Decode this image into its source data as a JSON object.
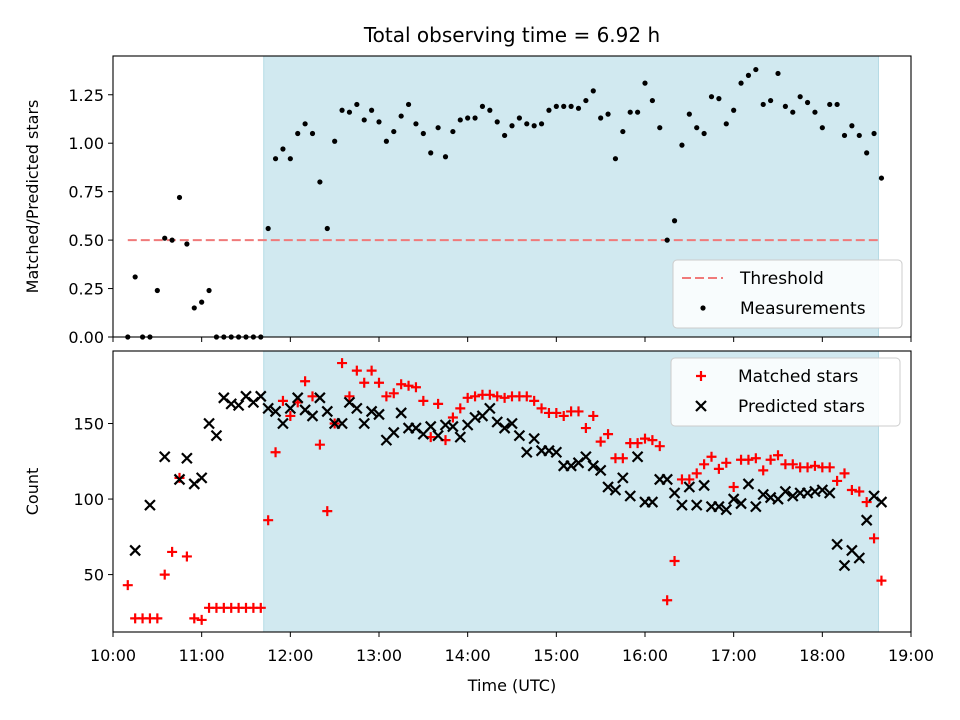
{
  "chart_data": [
    {
      "type": "scatter",
      "title": "Total observing time = 6.92 h",
      "ylabel": "Matched/Predicted stars",
      "xlim": [
        "10:00",
        "19:00"
      ],
      "ylim": [
        0,
        1.45
      ],
      "yticks": [
        "0.00",
        "0.25",
        "0.50",
        "0.75",
        "1.00",
        "1.25"
      ],
      "shaded_region": {
        "from": "11:42",
        "to": "18:38",
        "color": "#d1e9f0"
      },
      "threshold": {
        "name": "Threshold",
        "value": 0.5,
        "from": "10:10",
        "to": "18:38",
        "color": "#f07a7a"
      },
      "series": [
        {
          "name": "Measurements",
          "color": "#000000",
          "x": [
            "10:10",
            "10:15",
            "10:20",
            "10:25",
            "10:30",
            "10:35",
            "10:40",
            "10:45",
            "10:50",
            "10:55",
            "11:00",
            "11:05",
            "11:10",
            "11:15",
            "11:20",
            "11:25",
            "11:30",
            "11:35",
            "11:40",
            "11:45",
            "11:50",
            "11:55",
            "12:00",
            "12:05",
            "12:10",
            "12:15",
            "12:20",
            "12:25",
            "12:30",
            "12:35",
            "12:40",
            "12:45",
            "12:50",
            "12:55",
            "13:00",
            "13:05",
            "13:10",
            "13:15",
            "13:20",
            "13:25",
            "13:30",
            "13:35",
            "13:40",
            "13:45",
            "13:50",
            "13:55",
            "14:00",
            "14:05",
            "14:10",
            "14:15",
            "14:20",
            "14:25",
            "14:30",
            "14:35",
            "14:40",
            "14:45",
            "14:50",
            "14:55",
            "15:00",
            "15:05",
            "15:10",
            "15:15",
            "15:20",
            "15:25",
            "15:30",
            "15:35",
            "15:40",
            "15:45",
            "15:50",
            "15:55",
            "16:00",
            "16:05",
            "16:10",
            "16:15",
            "16:20",
            "16:25",
            "16:30",
            "16:35",
            "16:40",
            "16:45",
            "16:50",
            "16:55",
            "17:00",
            "17:05",
            "17:10",
            "17:15",
            "17:20",
            "17:25",
            "17:30",
            "17:35",
            "17:40",
            "17:45",
            "17:50",
            "17:55",
            "18:00",
            "18:05",
            "18:10",
            "18:15",
            "18:20",
            "18:25",
            "18:30",
            "18:35",
            "18:40"
          ],
          "y": [
            0,
            0.31,
            0,
            0,
            0.24,
            0.51,
            0.5,
            0.72,
            0.48,
            0.15,
            0.18,
            0.24,
            0,
            0,
            0,
            0,
            0,
            0,
            0,
            0.56,
            0.92,
            0.97,
            0.92,
            1.05,
            1.1,
            1.05,
            0.8,
            0.56,
            1.01,
            1.17,
            1.16,
            1.2,
            1.12,
            1.17,
            1.11,
            1.01,
            1.06,
            1.14,
            1.2,
            1.1,
            1.05,
            0.95,
            1.08,
            0.93,
            1.06,
            1.12,
            1.13,
            1.13,
            1.19,
            1.17,
            1.11,
            1.04,
            1.09,
            1.13,
            1.1,
            1.09,
            1.1,
            1.17,
            1.19,
            1.19,
            1.19,
            1.18,
            1.22,
            1.27,
            1.13,
            1.15,
            0.92,
            1.06,
            1.16,
            1.16,
            1.31,
            1.22,
            1.08,
            0.5,
            0.6,
            0.99,
            1.15,
            1.08,
            1.05,
            1.24,
            1.23,
            1.1,
            1.17,
            1.31,
            1.35,
            1.38,
            1.2,
            1.22,
            1.36,
            1.19,
            1.16,
            1.24,
            1.21,
            1.16,
            1.08,
            1.2,
            1.2,
            1.04,
            1.09,
            1.04,
            0.95,
            1.05,
            0.82
          ]
        }
      ],
      "legend": {
        "placement": "lower right",
        "entries": [
          "Threshold",
          "Measurements"
        ]
      }
    },
    {
      "type": "scatter",
      "ylabel": "Count",
      "xlabel": "Time (UTC)",
      "xlim": [
        "10:00",
        "19:00"
      ],
      "xticks": [
        "10:00",
        "11:00",
        "12:00",
        "13:00",
        "14:00",
        "15:00",
        "16:00",
        "17:00",
        "18:00",
        "19:00"
      ],
      "ylim": [
        12,
        198
      ],
      "yticks": [
        "50",
        "100",
        "150"
      ],
      "shaded_region": {
        "from": "11:42",
        "to": "18:38",
        "color": "#d1e9f0"
      },
      "series": [
        {
          "name": "Matched stars",
          "marker": "plus",
          "color": "#ff0000",
          "x": [
            "10:10",
            "10:15",
            "10:20",
            "10:25",
            "10:30",
            "10:35",
            "10:40",
            "10:45",
            "10:50",
            "10:55",
            "11:00",
            "11:05",
            "11:10",
            "11:15",
            "11:20",
            "11:25",
            "11:30",
            "11:35",
            "11:40",
            "11:45",
            "11:50",
            "11:55",
            "12:00",
            "12:05",
            "12:10",
            "12:15",
            "12:20",
            "12:25",
            "12:30",
            "12:35",
            "12:40",
            "12:45",
            "12:50",
            "12:55",
            "13:00",
            "13:05",
            "13:10",
            "13:15",
            "13:20",
            "13:25",
            "13:30",
            "13:35",
            "13:40",
            "13:45",
            "13:50",
            "13:55",
            "14:00",
            "14:05",
            "14:10",
            "14:15",
            "14:20",
            "14:25",
            "14:30",
            "14:35",
            "14:40",
            "14:45",
            "14:50",
            "14:55",
            "15:00",
            "15:05",
            "15:10",
            "15:15",
            "15:20",
            "15:25",
            "15:30",
            "15:35",
            "15:40",
            "15:45",
            "15:50",
            "15:55",
            "16:00",
            "16:05",
            "16:10",
            "16:15",
            "16:20",
            "16:25",
            "16:30",
            "16:35",
            "16:40",
            "16:45",
            "16:50",
            "16:55",
            "17:00",
            "17:05",
            "17:10",
            "17:15",
            "17:20",
            "17:25",
            "17:30",
            "17:35",
            "17:40",
            "17:45",
            "17:50",
            "17:55",
            "18:00",
            "18:05",
            "18:10",
            "18:15",
            "18:20",
            "18:25",
            "18:30",
            "18:35",
            "18:40"
          ],
          "y": [
            43,
            21,
            21,
            21,
            21,
            50,
            65,
            114,
            62,
            21,
            20,
            28,
            28,
            28,
            28,
            28,
            28,
            28,
            28,
            86,
            131,
            165,
            155,
            164,
            178,
            168,
            136,
            92,
            150,
            190,
            168,
            185,
            177,
            185,
            177,
            168,
            170,
            176,
            175,
            174,
            165,
            141,
            163,
            139,
            154,
            160,
            167,
            168,
            169,
            169,
            168,
            167,
            168,
            168,
            168,
            165,
            160,
            157,
            157,
            155,
            158,
            158,
            147,
            155,
            138,
            143,
            127,
            127,
            137,
            137,
            140,
            139,
            135,
            33,
            59,
            113,
            113,
            117,
            123,
            128,
            120,
            124,
            108,
            126,
            126,
            127,
            119,
            126,
            129,
            123,
            123,
            121,
            121,
            122,
            121,
            121,
            112,
            117,
            106,
            105,
            98,
            74,
            46
          ]
        },
        {
          "name": "Predicted stars",
          "marker": "x",
          "color": "#000000",
          "x": [
            "10:15",
            "10:25",
            "10:35",
            "10:45",
            "10:50",
            "10:55",
            "11:00",
            "11:05",
            "11:10",
            "11:15",
            "11:20",
            "11:25",
            "11:30",
            "11:35",
            "11:40",
            "11:45",
            "11:50",
            "11:55",
            "12:00",
            "12:05",
            "12:10",
            "12:15",
            "12:20",
            "12:25",
            "12:30",
            "12:35",
            "12:40",
            "12:45",
            "12:50",
            "12:55",
            "13:00",
            "13:05",
            "13:10",
            "13:15",
            "13:20",
            "13:25",
            "13:30",
            "13:35",
            "13:40",
            "13:45",
            "13:50",
            "13:55",
            "14:00",
            "14:05",
            "14:10",
            "14:15",
            "14:20",
            "14:25",
            "14:30",
            "14:35",
            "14:40",
            "14:45",
            "14:50",
            "14:55",
            "15:00",
            "15:05",
            "15:10",
            "15:15",
            "15:20",
            "15:25",
            "15:30",
            "15:35",
            "15:40",
            "15:45",
            "15:50",
            "15:55",
            "16:00",
            "16:05",
            "16:10",
            "16:15",
            "16:20",
            "16:25",
            "16:30",
            "16:35",
            "16:40",
            "16:45",
            "16:50",
            "16:55",
            "17:00",
            "17:05",
            "17:10",
            "17:15",
            "17:20",
            "17:25",
            "17:30",
            "17:35",
            "17:40",
            "17:45",
            "17:50",
            "17:55",
            "18:00",
            "18:05",
            "18:10",
            "18:15",
            "18:20",
            "18:25",
            "18:30",
            "18:35",
            "18:40"
          ],
          "y": [
            66,
            96,
            128,
            113,
            127,
            110,
            114,
            150,
            142,
            167,
            163,
            162,
            168,
            164,
            168,
            160,
            158,
            150,
            160,
            167,
            159,
            155,
            167,
            158,
            150,
            150,
            164,
            160,
            150,
            158,
            156,
            139,
            144,
            157,
            147,
            147,
            143,
            148,
            142,
            149,
            148,
            141,
            149,
            154,
            155,
            160,
            151,
            147,
            150,
            142,
            131,
            140,
            132,
            132,
            131,
            122,
            122,
            124,
            128,
            122,
            119,
            108,
            106,
            114,
            102,
            128,
            98,
            98,
            113,
            113,
            104,
            96,
            108,
            96,
            109,
            95,
            95,
            93,
            100,
            97,
            110,
            95,
            103,
            101,
            100,
            105,
            102,
            104,
            104,
            105,
            106,
            104,
            70,
            56,
            66,
            61,
            86,
            102,
            98
          ]
        }
      ],
      "legend": {
        "placement": "upper right",
        "entries": [
          "Matched stars",
          "Predicted stars"
        ]
      }
    }
  ]
}
